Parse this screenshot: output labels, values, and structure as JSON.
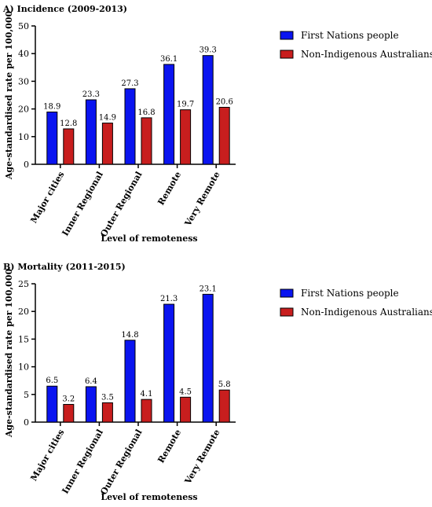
{
  "chart_data": [
    {
      "type": "bar",
      "title": "A) Incidence (2009-2013)",
      "xlabel": "Level of remoteness",
      "ylabel": "Age-standardised rate per 100,000",
      "categories": [
        "Major cities",
        "Inner Regional",
        "Outer Regional",
        "Remote",
        "Very Remote"
      ],
      "series": [
        {
          "name": "First Nations people",
          "color": "#0a14f0",
          "values": [
            18.9,
            23.3,
            27.3,
            36.1,
            39.3
          ]
        },
        {
          "name": "Non-Indigenous Australians",
          "color": "#c81e1e",
          "values": [
            12.8,
            14.9,
            16.8,
            19.7,
            20.6
          ]
        }
      ],
      "data_labels": [
        [
          "18.9",
          "23.3",
          "27.3",
          "36.1",
          "39.3"
        ],
        [
          "12.8",
          "14.9",
          "16.8",
          "19.7",
          "20.6"
        ]
      ],
      "ylim": [
        0,
        50
      ],
      "yticks": [
        0,
        10,
        20,
        30,
        40,
        50
      ],
      "grid": false,
      "legend_position": "top-right"
    },
    {
      "type": "bar",
      "title": "B) Mortality (2011-2015)",
      "xlabel": "Level of remoteness",
      "ylabel": "Age-standardised rate per 100,000",
      "categories": [
        "Major cities",
        "Inner Regional",
        "Outer Regional",
        "Remote",
        "Very Remote"
      ],
      "series": [
        {
          "name": "First Nations people",
          "color": "#0a14f0",
          "values": [
            6.5,
            6.4,
            14.8,
            21.3,
            23.1
          ]
        },
        {
          "name": "Non-Indigenous Australians",
          "color": "#c81e1e",
          "values": [
            3.2,
            3.5,
            4.1,
            4.5,
            5.8
          ]
        }
      ],
      "data_labels": [
        [
          "6.5",
          "6.4",
          "14.8",
          "21.3",
          "23.1"
        ],
        [
          "3.2",
          "3.5",
          "4.1",
          "4.5",
          "5.8"
        ]
      ],
      "ylim": [
        0,
        25
      ],
      "yticks": [
        0,
        5,
        10,
        15,
        20,
        25
      ],
      "grid": false,
      "legend_position": "top-right"
    }
  ]
}
